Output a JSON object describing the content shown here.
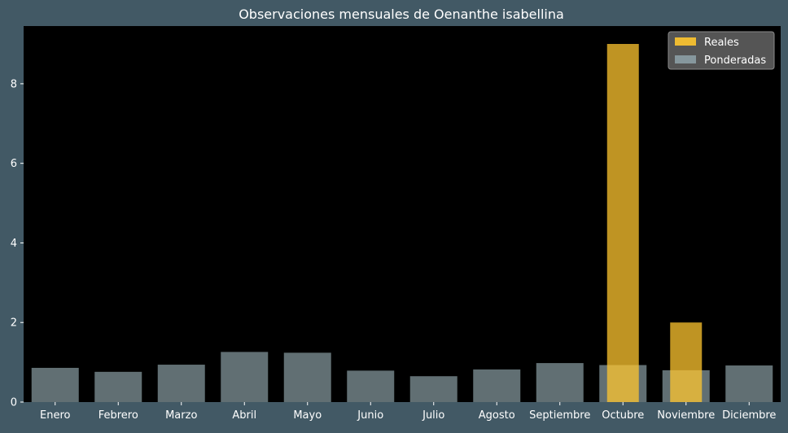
{
  "chart_data": {
    "type": "bar",
    "title": "Observaciones mensuales de Oenanthe isabellina",
    "xlabel": "",
    "ylabel": "",
    "categories": [
      "Enero",
      "Febrero",
      "Marzo",
      "Abril",
      "Mayo",
      "Junio",
      "Julio",
      "Agosto",
      "Septiembre",
      "Octubre",
      "Noviembre",
      "Diciembre"
    ],
    "series": [
      {
        "name": "Reales",
        "color": "#FFC62F",
        "values": [
          0,
          0,
          0,
          0,
          0,
          0,
          0,
          0,
          0,
          9,
          2,
          0
        ]
      },
      {
        "name": "Ponderadas",
        "color": "#8FA3AA",
        "values": [
          0.86,
          0.76,
          0.94,
          1.26,
          1.24,
          0.79,
          0.65,
          0.82,
          0.98,
          0.93,
          0.8,
          0.92
        ]
      }
    ],
    "ylim": [
      0,
      9.45
    ],
    "yticks": [
      0,
      2,
      4,
      6,
      8
    ],
    "grid": false,
    "legend_position": "top-right",
    "colors": {
      "figure_background": "#425965",
      "plot_background": "#000000",
      "text": "#FFFFFF",
      "legend_background": "#5A5A5A"
    }
  }
}
